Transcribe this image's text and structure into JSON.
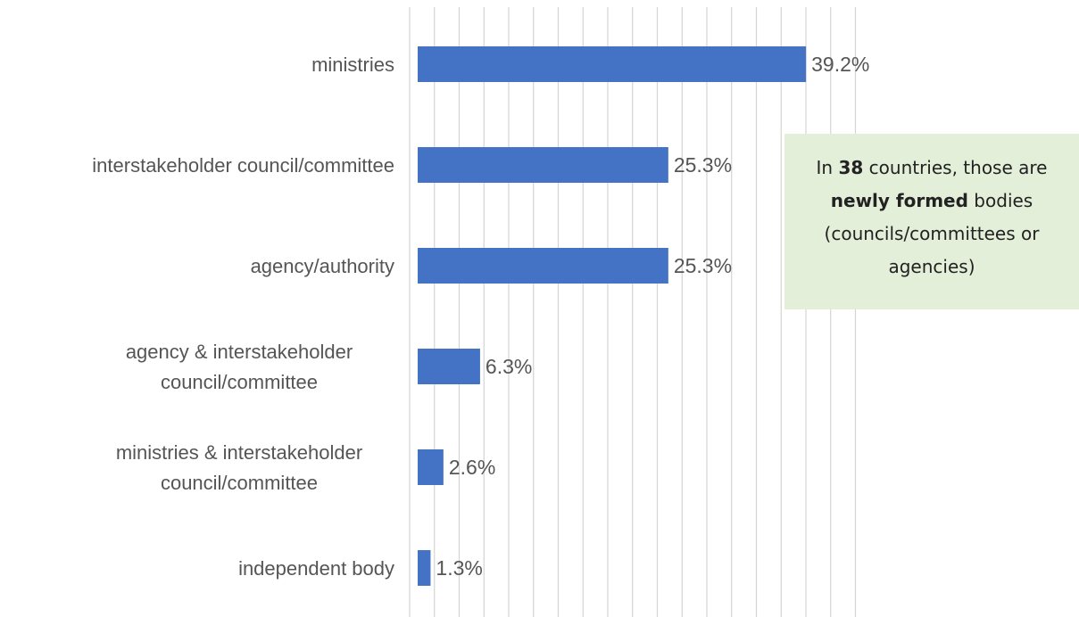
{
  "chart_data": {
    "type": "bar",
    "orientation": "horizontal",
    "categories": [
      [
        "ministries"
      ],
      [
        "interstakeholder council/committee"
      ],
      [
        "agency/authority"
      ],
      [
        "agency & interstakeholder",
        "council/committee"
      ],
      [
        "ministries & interstakeholder",
        "council/committee"
      ],
      [
        "independent body"
      ]
    ],
    "values": [
      39.2,
      25.3,
      25.3,
      6.3,
      2.6,
      1.3
    ],
    "value_labels": [
      "39.2%",
      "25.3%",
      "25.3%",
      "6.3%",
      "2.6%",
      "1.3%"
    ],
    "unit": "%",
    "xlim": [
      0,
      45
    ],
    "grid": true,
    "bar_color": "#4472c4",
    "title": "",
    "xlabel": "",
    "ylabel": ""
  },
  "annotation": {
    "line1_pre": "In ",
    "line1_bold": "38",
    "line1_post": " countries, those are",
    "line2_bold": "newly formed",
    "line2_post": " bodies",
    "line3": "(councils/committees or",
    "line4": "agencies)",
    "background": "#e3efd9"
  }
}
